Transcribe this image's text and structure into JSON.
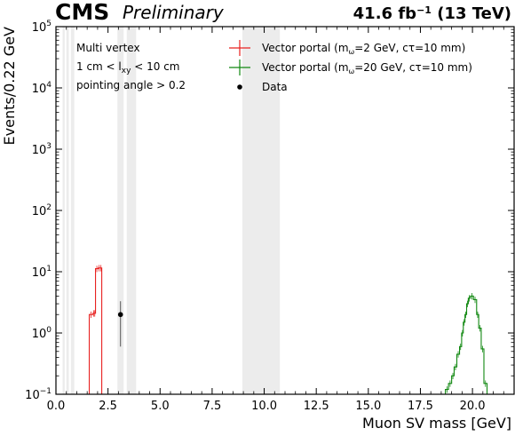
{
  "header": {
    "experiment": "CMS",
    "status": "Preliminary",
    "lumi_value": "41.6 fb",
    "lumi_exp": "−1",
    "lumi_energy": " (13 TeV)"
  },
  "annotations": [
    {
      "text": "Multi vertex"
    },
    {
      "pre": "1 cm < l",
      "sub": "xy",
      "post": " < 10 cm"
    },
    {
      "text": "pointing angle > 0.2"
    }
  ],
  "legend": [
    {
      "pre": "Vector portal (m",
      "sub": "ω",
      "post": "=2 GeV, cτ=10 mm)",
      "color": "#e8201f",
      "marker": "cross"
    },
    {
      "pre": "Vector portal (m",
      "sub": "ω",
      "post": "=20 GeV, cτ=10 mm)",
      "color": "#118811",
      "marker": "cross"
    },
    {
      "pre": "Data",
      "sub": "",
      "post": "",
      "color": "#000000",
      "marker": "dot"
    }
  ],
  "chart_data": {
    "type": "histogram",
    "xlabel": "Muon SV mass [GeV]",
    "ylabel": "Events/0.22 GeV",
    "xlim": [
      0,
      22.0
    ],
    "ylim": [
      0.1,
      100000
    ],
    "yscale": "log",
    "xticks": [
      "0.0",
      "2.5",
      "5.0",
      "7.5",
      "10.0",
      "12.5",
      "15.0",
      "17.5",
      "20.0"
    ],
    "xtick_values": [
      0,
      2.5,
      5,
      7.5,
      10,
      12.5,
      15,
      17.5,
      20
    ],
    "yticks": [
      {
        "value": 0.1,
        "base": "10",
        "exp": "−1"
      },
      {
        "value": 1,
        "base": "10",
        "exp": "0"
      },
      {
        "value": 10,
        "base": "10",
        "exp": "1"
      },
      {
        "value": 100,
        "base": "10",
        "exp": "2"
      },
      {
        "value": 1000,
        "base": "10",
        "exp": "3"
      },
      {
        "value": 10000,
        "base": "10",
        "exp": "4"
      },
      {
        "value": 100000,
        "base": "10",
        "exp": "5"
      }
    ],
    "masked_regions": [
      [
        0.32,
        0.42
      ],
      [
        0.5,
        0.62
      ],
      [
        0.72,
        0.88
      ],
      [
        2.95,
        3.25
      ],
      [
        3.4,
        3.85
      ],
      [
        8.95,
        10.75
      ]
    ],
    "series": [
      {
        "name": "Vector portal (mω=2 GeV, cτ=10 mm)",
        "color": "#e8201f",
        "bins": [
          {
            "lo": 1.6,
            "hi": 1.78,
            "value": 2.0
          },
          {
            "lo": 1.78,
            "hi": 1.83,
            "value": 2.1
          },
          {
            "lo": 1.83,
            "hi": 1.9,
            "value": 2.1
          },
          {
            "lo": 1.9,
            "hi": 2.03,
            "value": 11.2
          },
          {
            "lo": 2.03,
            "hi": 2.12,
            "value": 11.5
          },
          {
            "lo": 2.12,
            "hi": 2.2,
            "value": 11.5
          }
        ]
      },
      {
        "name": "Vector portal (mω=20 GeV, cτ=10 mm)",
        "color": "#118811",
        "bins": [
          {
            "lo": 18.7,
            "hi": 18.85,
            "value": 0.12
          },
          {
            "lo": 18.85,
            "hi": 19.0,
            "value": 0.15
          },
          {
            "lo": 19.0,
            "hi": 19.12,
            "value": 0.2
          },
          {
            "lo": 19.12,
            "hi": 19.25,
            "value": 0.28
          },
          {
            "lo": 19.25,
            "hi": 19.38,
            "value": 0.45
          },
          {
            "lo": 19.38,
            "hi": 19.48,
            "value": 0.6
          },
          {
            "lo": 19.48,
            "hi": 19.56,
            "value": 1.0
          },
          {
            "lo": 19.56,
            "hi": 19.64,
            "value": 1.5
          },
          {
            "lo": 19.64,
            "hi": 19.72,
            "value": 2.0
          },
          {
            "lo": 19.72,
            "hi": 19.8,
            "value": 3.0
          },
          {
            "lo": 19.8,
            "hi": 19.9,
            "value": 3.7
          },
          {
            "lo": 19.9,
            "hi": 20.05,
            "value": 4.0
          },
          {
            "lo": 20.05,
            "hi": 20.2,
            "value": 3.5
          },
          {
            "lo": 20.2,
            "hi": 20.3,
            "value": 2.0
          },
          {
            "lo": 20.3,
            "hi": 20.42,
            "value": 1.2
          },
          {
            "lo": 20.42,
            "hi": 20.55,
            "value": 0.55
          },
          {
            "lo": 20.55,
            "hi": 20.7,
            "value": 0.15
          }
        ]
      }
    ],
    "data_points": [
      {
        "x": 3.1,
        "y": 2.0,
        "ylow": 0.6,
        "yhigh": 3.3
      }
    ]
  }
}
